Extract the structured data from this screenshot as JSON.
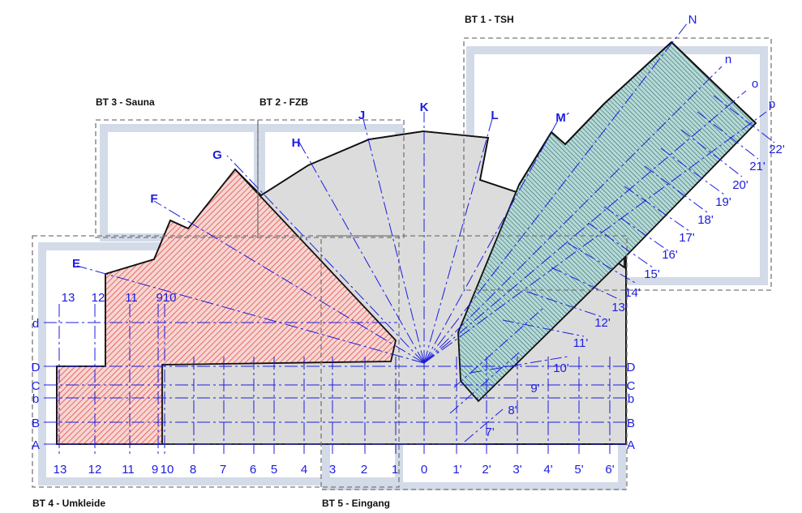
{
  "colors": {
    "grid_line": "#1c1ce0",
    "section_border": "#777777",
    "pale_structure": "#d3dbe8",
    "floor_gray": "#dcdcdc",
    "red_hatch": "#e23b3b",
    "red_fill": "#f6d6d2",
    "teal_fill": "#b7d9d6",
    "teal_hatch": "#1f5f64",
    "outline": "#111111"
  },
  "sections": {
    "bt1": "BT 1 - TSH",
    "bt2": "BT 2 - FZB",
    "bt3": "BT 3 - Sauna",
    "bt4": "BT 4 - Umkleide",
    "bt5": "BT 5 - Eingang"
  },
  "bottom_axes": [
    "13",
    "12",
    "11",
    "9",
    "10",
    "8",
    "7",
    "6",
    "5",
    "4",
    "3",
    "2",
    "1",
    "0",
    "1'",
    "2'",
    "3'",
    "4'",
    "5'",
    "6'"
  ],
  "top_left_axes": [
    "13",
    "12",
    "11",
    "910"
  ],
  "left_rows": [
    "D",
    "C",
    "b",
    "B",
    "A"
  ],
  "left_extra_row": "d",
  "right_rows": [
    "D",
    "C",
    "b",
    "B",
    "A"
  ],
  "radial_labels": [
    "E",
    "F",
    "G",
    "H",
    "J",
    "K",
    "L",
    "M´",
    "N"
  ],
  "bt1_side_labels": [
    "n",
    "o",
    "p"
  ],
  "primed_axes": [
    "7'",
    "8'",
    "9'",
    "10'",
    "11'",
    "12'",
    "13'",
    "14'",
    "15'",
    "16'",
    "17'",
    "18'",
    "19'",
    "20'",
    "21'",
    "22'"
  ]
}
